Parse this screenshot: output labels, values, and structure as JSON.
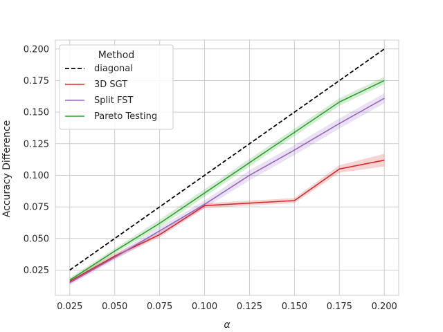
{
  "chart_data": {
    "type": "line",
    "xlabel": "α",
    "ylabel": "Accuracy Difference",
    "xlim": [
      0.017,
      0.208
    ],
    "ylim": [
      0.005,
      0.207
    ],
    "x_ticks": [
      0.025,
      0.05,
      0.075,
      0.1,
      0.125,
      0.15,
      0.175,
      0.2
    ],
    "x_tick_labels": [
      "0.025",
      "0.050",
      "0.075",
      "0.100",
      "0.125",
      "0.150",
      "0.175",
      "0.200"
    ],
    "y_ticks": [
      0.025,
      0.05,
      0.075,
      0.1,
      0.125,
      0.15,
      0.175,
      0.2
    ],
    "y_tick_labels": [
      "0.025",
      "0.050",
      "0.075",
      "0.100",
      "0.125",
      "0.150",
      "0.175",
      "0.200"
    ],
    "grid": true,
    "legend": {
      "title": "Method",
      "placement": "top-left"
    },
    "x": [
      0.025,
      0.05,
      0.075,
      0.1,
      0.125,
      0.15,
      0.175,
      0.2
    ],
    "series": [
      {
        "name": "diagonal",
        "color": "#000000",
        "dashed": true,
        "values": [
          0.025,
          0.05,
          0.075,
          0.1,
          0.125,
          0.15,
          0.175,
          0.2
        ]
      },
      {
        "name": "3D SGT",
        "color": "#d62728",
        "values": [
          0.016,
          0.036,
          0.053,
          0.076,
          0.078,
          0.08,
          0.105,
          0.112
        ],
        "band": [
          0.002,
          0.002,
          0.002,
          0.002,
          0.002,
          0.002,
          0.003,
          0.005
        ]
      },
      {
        "name": "Split FST",
        "color": "#9467bd",
        "values": [
          0.015,
          0.035,
          0.056,
          0.077,
          0.1,
          0.12,
          0.141,
          0.161
        ],
        "band": [
          0.002,
          0.002,
          0.003,
          0.003,
          0.004,
          0.004,
          0.004,
          0.004
        ]
      },
      {
        "name": "Pareto Testing",
        "color": "#2ca02c",
        "values": [
          0.017,
          0.04,
          0.062,
          0.086,
          0.11,
          0.134,
          0.158,
          0.175
        ],
        "band": [
          0.002,
          0.002,
          0.003,
          0.003,
          0.003,
          0.003,
          0.003,
          0.003
        ]
      }
    ]
  }
}
